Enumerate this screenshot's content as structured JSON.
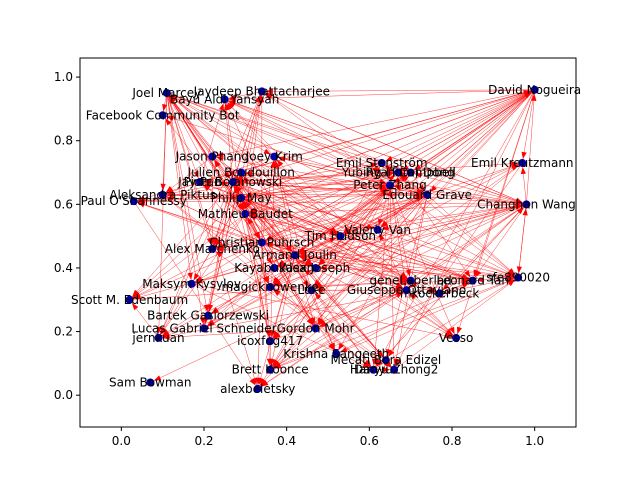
{
  "chart_data": {
    "type": "network",
    "title": "",
    "xlabel": "",
    "ylabel": "",
    "xlim": [
      -0.1,
      1.1
    ],
    "ylim": [
      -0.1,
      1.06
    ],
    "xticks": [
      "0.0",
      "0.2",
      "0.4",
      "0.6",
      "0.8",
      "1.0"
    ],
    "yticks": [
      "0.0",
      "0.2",
      "0.4",
      "0.6",
      "0.8",
      "1.0"
    ],
    "grid": false,
    "colors": {
      "node": "#0000aa",
      "edge": "#ff0000",
      "arrow": "#ff0000"
    },
    "nodes": [
      {
        "label": "Joel Marcey",
        "x": 0.11,
        "y": 0.95
      },
      {
        "label": "Jaydeep Bhattacharjee",
        "x": 0.34,
        "y": 0.955
      },
      {
        "label": "Bayu Aldi Yansyah",
        "x": 0.25,
        "y": 0.93
      },
      {
        "label": "David Nogueira",
        "x": 1.0,
        "y": 0.96
      },
      {
        "label": "Facebook Community Bot",
        "x": 0.1,
        "y": 0.88
      },
      {
        "label": "Jason Phang",
        "x": 0.22,
        "y": 0.75
      },
      {
        "label": "Joey Krim",
        "x": 0.37,
        "y": 0.75
      },
      {
        "label": "Julien Boudouillon",
        "x": 0.29,
        "y": 0.7
      },
      {
        "label": "Piotr Bojanowski",
        "x": 0.27,
        "y": 0.67
      },
      {
        "label": "Jay Pan",
        "x": 0.19,
        "y": 0.67
      },
      {
        "label": "Emil Stenström",
        "x": 0.63,
        "y": 0.73
      },
      {
        "label": "Yubing (Tom) Dong",
        "x": 0.67,
        "y": 0.7
      },
      {
        "label": "Ryan Campbell",
        "x": 0.7,
        "y": 0.7
      },
      {
        "label": "Emil Kreutzmann",
        "x": 0.97,
        "y": 0.73
      },
      {
        "label": "Peter Zhang",
        "x": 0.65,
        "y": 0.66
      },
      {
        "label": "Edouard Grave",
        "x": 0.74,
        "y": 0.63
      },
      {
        "label": "Aleksandra Piktus",
        "x": 0.1,
        "y": 0.63
      },
      {
        "label": "Paul O'Shannessy",
        "x": 0.03,
        "y": 0.61
      },
      {
        "label": "Philip May",
        "x": 0.29,
        "y": 0.62
      },
      {
        "label": "Mathieu Baudet",
        "x": 0.3,
        "y": 0.57
      },
      {
        "label": "Changhan Wang",
        "x": 0.98,
        "y": 0.6
      },
      {
        "label": "Valeriy Van",
        "x": 0.62,
        "y": 0.52
      },
      {
        "label": "Christian Puhrsch",
        "x": 0.34,
        "y": 0.48
      },
      {
        "label": "Tim Hudson",
        "x": 0.53,
        "y": 0.5
      },
      {
        "label": "Alex Marchenko",
        "x": 0.22,
        "y": 0.46
      },
      {
        "label": "Armand Joulin",
        "x": 0.42,
        "y": 0.44
      },
      {
        "label": "Kayabukasan",
        "x": 0.37,
        "y": 0.4
      },
      {
        "label": "Alex Joseph",
        "x": 0.47,
        "y": 0.4
      },
      {
        "label": "Maksym Kysylov",
        "x": 0.17,
        "y": 0.35
      },
      {
        "label": "magicknowenke",
        "x": 0.36,
        "y": 0.34
      },
      {
        "label": "Luke",
        "x": 0.46,
        "y": 0.33
      },
      {
        "label": "Giuseppe Ottaviano",
        "x": 0.69,
        "y": 0.33
      },
      {
        "label": "geneLaberlad",
        "x": 0.7,
        "y": 0.36
      },
      {
        "label": "Leonard Tan",
        "x": 0.85,
        "y": 0.36
      },
      {
        "label": "mkockerbeck",
        "x": 0.77,
        "y": 0.32
      },
      {
        "label": "Scott M. Edenbaum",
        "x": 0.02,
        "y": 0.3
      },
      {
        "label": "sfe890020",
        "x": 0.96,
        "y": 0.37
      },
      {
        "label": "Bartek Gasiorzewski",
        "x": 0.21,
        "y": 0.25
      },
      {
        "label": "Lucas Gabriel Schneider",
        "x": 0.2,
        "y": 0.21
      },
      {
        "label": "Gordon Mohr",
        "x": 0.47,
        "y": 0.21
      },
      {
        "label": "jernkuan",
        "x": 0.09,
        "y": 0.18
      },
      {
        "label": "icoxfog417",
        "x": 0.36,
        "y": 0.17
      },
      {
        "label": "Vesso",
        "x": 0.81,
        "y": 0.18
      },
      {
        "label": "Krishna Sangeeth",
        "x": 0.52,
        "y": 0.13
      },
      {
        "label": "Mecati Bora Edizel",
        "x": 0.64,
        "y": 0.11
      },
      {
        "label": "Danyu",
        "x": 0.61,
        "y": 0.08
      },
      {
        "label": "Hanyu Zhong2",
        "x": 0.66,
        "y": 0.08
      },
      {
        "label": "Brett Koonce",
        "x": 0.36,
        "y": 0.08
      },
      {
        "label": "Sam Bowman",
        "x": 0.07,
        "y": 0.04
      },
      {
        "label": "alexbeletsky",
        "x": 0.33,
        "y": 0.02
      }
    ]
  }
}
